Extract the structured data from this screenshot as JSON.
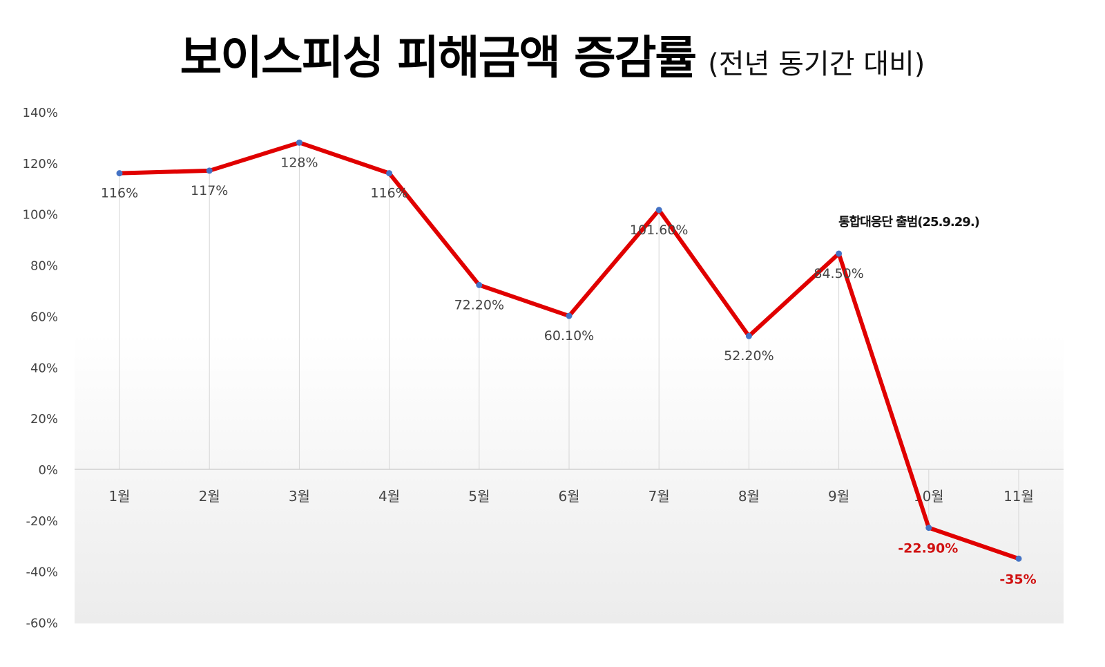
{
  "title": "보이스피싱 피해금액 증감률",
  "subtitle": "(전년 동기간 대비)",
  "chart_data": {
    "type": "line",
    "title": "보이스피싱 피해금액 증감률",
    "subtitle": "(전년 동기간 대비)",
    "xlabel": "",
    "ylabel": "",
    "categories": [
      "1월",
      "2월",
      "3월",
      "4월",
      "5월",
      "6월",
      "7월",
      "8월",
      "9월",
      "10월",
      "11월"
    ],
    "values": [
      116,
      117,
      128,
      116,
      72.2,
      60.1,
      101.6,
      52.2,
      84.5,
      -22.9,
      -35
    ],
    "data_labels": [
      "116%",
      "117%",
      "128%",
      "116%",
      "72.20%",
      "60.10%",
      "101.60%",
      "52.20%",
      "84.50%",
      "-22.90%",
      "-35%"
    ],
    "y_ticks": [
      "140%",
      "120%",
      "100%",
      "80%",
      "60%",
      "40%",
      "20%",
      "0%",
      "-20%",
      "-40%",
      "-60%"
    ],
    "ylim": [
      -60,
      140
    ],
    "grid": false,
    "drop_lines": true,
    "annotation": "통합대응단 출범(25.9.29.)",
    "line_color": "#e00000",
    "marker_color": "#4472c4",
    "negative_label_color": "#d01010"
  }
}
